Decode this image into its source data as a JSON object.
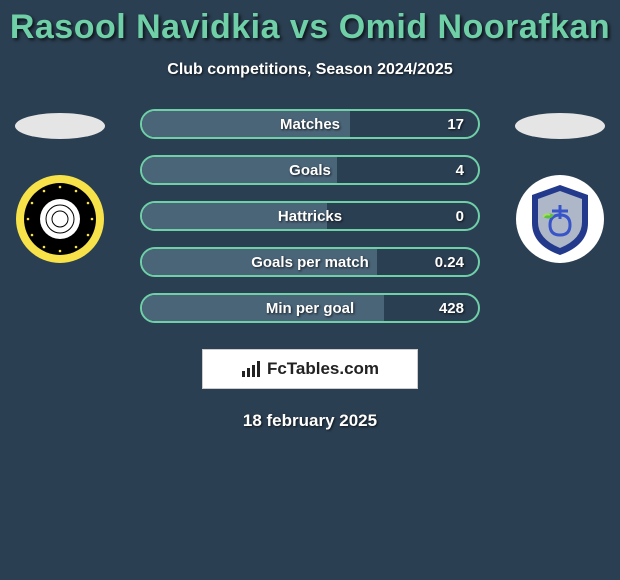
{
  "background_color": "#2b3f52",
  "title": {
    "text": "Rasool Navidkia vs Omid Noorafkan",
    "color": "#6fd0a8",
    "fontsize": 34,
    "fontweight": 900
  },
  "subtitle": {
    "text": "Club competitions, Season 2024/2025",
    "color": "#ffffff",
    "fontsize": 16
  },
  "bar_style": {
    "border_color": "#6fd0a8",
    "background_color": "#2b3f52",
    "fill_color": "#4a6478",
    "label_color": "#ffffff",
    "value_color": "#ffffff",
    "height": 30,
    "border_radius": 15,
    "border_width": 2
  },
  "stats": [
    {
      "label": "Matches",
      "value": "17",
      "fill_pct": 62
    },
    {
      "label": "Goals",
      "value": "4",
      "fill_pct": 58
    },
    {
      "label": "Hattricks",
      "value": "0",
      "fill_pct": 55
    },
    {
      "label": "Goals per match",
      "value": "0.24",
      "fill_pct": 70
    },
    {
      "label": "Min per goal",
      "value": "428",
      "fill_pct": 72
    }
  ],
  "player_left": {
    "oval_color": "#e5e5e5",
    "club_badge": {
      "outer_ring": "#f7e24a",
      "inner_ring": "#000000",
      "center": "#ffffff"
    }
  },
  "player_right": {
    "oval_color": "#e5e5e5",
    "club_badge": {
      "background": "#ffffff",
      "shield_outer": "#233a8c",
      "shield_inner": "#aeb7c8",
      "accent": "#3854c9"
    }
  },
  "brand": {
    "text": "FcTables.com",
    "box_bg": "#ffffff",
    "box_border": "#cccccc",
    "text_color": "#222222",
    "icon_color": "#222222"
  },
  "date": {
    "text": "18 february 2025",
    "color": "#ffffff",
    "fontsize": 17
  }
}
